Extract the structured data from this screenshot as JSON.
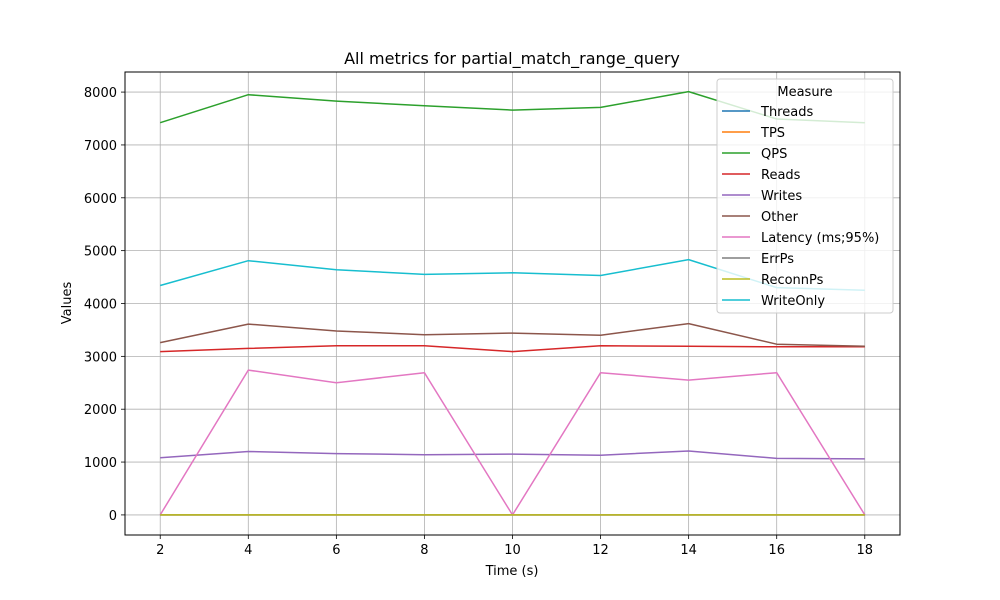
{
  "chart_data": {
    "type": "line",
    "title": "All metrics for partial_match_range_query",
    "xlabel": "Time (s)",
    "ylabel": "Values",
    "x": [
      2,
      4,
      6,
      8,
      10,
      12,
      14,
      16,
      18
    ],
    "xlim": [
      1.2,
      18.8
    ],
    "ylim": [
      -380,
      8380
    ],
    "xticks": [
      "2",
      "4",
      "6",
      "8",
      "10",
      "12",
      "14",
      "16",
      "18"
    ],
    "yticks": [
      "0",
      "1000",
      "2000",
      "3000",
      "4000",
      "5000",
      "6000",
      "7000",
      "8000"
    ],
    "grid": true,
    "legend": {
      "title": "Measure",
      "placement": "top-right"
    },
    "series": [
      {
        "name": "Threads",
        "color": "#1f77b4",
        "values": [
          1,
          1,
          1,
          1,
          1,
          1,
          1,
          1,
          1
        ]
      },
      {
        "name": "TPS",
        "color": "#ff7f0e",
        "values": [
          0,
          0,
          0,
          0,
          0,
          0,
          0,
          0,
          0
        ]
      },
      {
        "name": "QPS",
        "color": "#2ca02c",
        "values": [
          7420,
          7950,
          7830,
          7740,
          7660,
          7710,
          8010,
          7490,
          7420
        ]
      },
      {
        "name": "Reads",
        "color": "#d62728",
        "values": [
          3090,
          3150,
          3200,
          3200,
          3090,
          3200,
          3190,
          3180,
          3180
        ]
      },
      {
        "name": "Writes",
        "color": "#9467bd",
        "values": [
          1080,
          1200,
          1160,
          1140,
          1150,
          1130,
          1210,
          1070,
          1060
        ]
      },
      {
        "name": "Other",
        "color": "#8c564b",
        "values": [
          3260,
          3610,
          3480,
          3410,
          3440,
          3400,
          3620,
          3230,
          3190
        ]
      },
      {
        "name": "Latency (ms;95%)",
        "color": "#e377c2",
        "values": [
          0,
          2740,
          2500,
          2690,
          0,
          2690,
          2550,
          2690,
          0
        ]
      },
      {
        "name": "ErrPs",
        "color": "#7f7f7f",
        "values": [
          0,
          0,
          0,
          0,
          0,
          0,
          0,
          0,
          0
        ]
      },
      {
        "name": "ReconnPs",
        "color": "#bcbd22",
        "values": [
          0,
          0,
          0,
          0,
          0,
          0,
          0,
          0,
          0
        ]
      },
      {
        "name": "WriteOnly",
        "color": "#17becf",
        "values": [
          4340,
          4810,
          4640,
          4550,
          4580,
          4530,
          4830,
          4300,
          4250
        ]
      }
    ]
  }
}
